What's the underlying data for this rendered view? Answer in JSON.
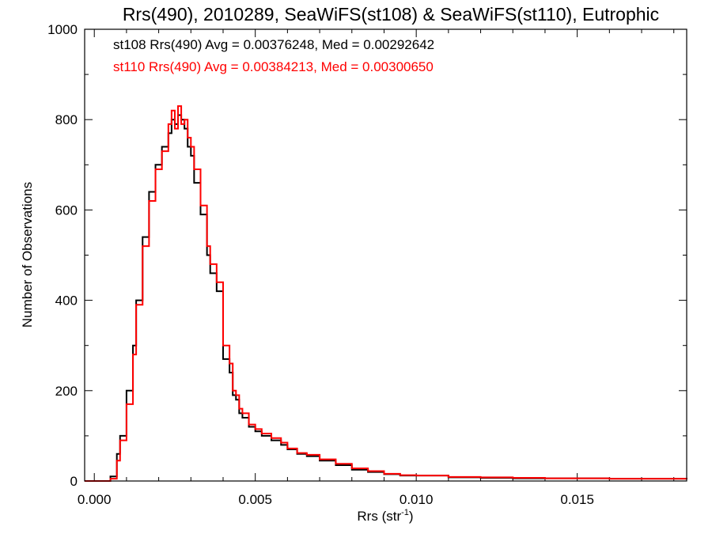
{
  "chart_data": {
    "type": "histogram",
    "title": "Rrs(490), 2010289, SeaWiFS(st108) & SeaWiFS(st110), Eutrophic",
    "xlabel": "Rrs (str",
    "xlabel_sup": "-1",
    "xlabel_suffix": ")",
    "ylabel": "Number of Observations",
    "xlim": [
      -0.0003,
      0.0184
    ],
    "ylim": [
      0,
      1000
    ],
    "xticks": [
      0.0,
      0.005,
      0.01,
      0.015
    ],
    "xtick_labels": [
      "0.000",
      "0.005",
      "0.010",
      "0.015"
    ],
    "yticks": [
      0,
      200,
      400,
      600,
      800,
      1000
    ],
    "ytick_labels": [
      "0",
      "200",
      "400",
      "600",
      "800",
      "1000"
    ],
    "grid": false,
    "annotations": [
      {
        "text": "st108 Rrs(490) Avg = 0.00376248, Med = 0.00292642",
        "color": "#000000"
      },
      {
        "text": "st110 Rrs(490) Avg = 0.00384213, Med = 0.00300650",
        "color": "#ff0000"
      }
    ],
    "series": [
      {
        "color": "#000000",
        "x": [
          -0.0003,
          0.0003,
          0.0005,
          0.0007,
          0.0008,
          0.001,
          0.0012,
          0.0013,
          0.0015,
          0.0017,
          0.0019,
          0.0021,
          0.0023,
          0.0024,
          0.0025,
          0.0026,
          0.0027,
          0.0028,
          0.0029,
          0.003,
          0.0031,
          0.0033,
          0.0035,
          0.0036,
          0.0038,
          0.004,
          0.0042,
          0.0043,
          0.0044,
          0.0045,
          0.0046,
          0.0048,
          0.005,
          0.0052,
          0.0055,
          0.0058,
          0.006,
          0.0063,
          0.0066,
          0.007,
          0.0075,
          0.008,
          0.0085,
          0.009,
          0.0095,
          0.01,
          0.011,
          0.012,
          0.013,
          0.014,
          0.015,
          0.016,
          0.017,
          0.0184
        ],
        "y": [
          0,
          0,
          10,
          60,
          100,
          200,
          300,
          400,
          540,
          640,
          700,
          740,
          770,
          800,
          790,
          810,
          800,
          780,
          740,
          720,
          660,
          590,
          500,
          460,
          420,
          270,
          240,
          190,
          180,
          150,
          140,
          120,
          110,
          100,
          90,
          80,
          70,
          60,
          55,
          45,
          35,
          25,
          20,
          15,
          12,
          12,
          8,
          7,
          6,
          6,
          6,
          5,
          5,
          4
        ]
      },
      {
        "color": "#ff0000",
        "x": [
          -0.0003,
          0.0003,
          0.0005,
          0.0007,
          0.0008,
          0.001,
          0.0012,
          0.0013,
          0.0015,
          0.0017,
          0.0019,
          0.0021,
          0.0023,
          0.0024,
          0.0025,
          0.0026,
          0.0027,
          0.0028,
          0.0029,
          0.003,
          0.0031,
          0.0033,
          0.0035,
          0.0036,
          0.0038,
          0.004,
          0.0042,
          0.0043,
          0.0044,
          0.0045,
          0.0046,
          0.0048,
          0.005,
          0.0052,
          0.0055,
          0.0058,
          0.006,
          0.0063,
          0.0066,
          0.007,
          0.0075,
          0.008,
          0.0085,
          0.009,
          0.0095,
          0.01,
          0.011,
          0.012,
          0.013,
          0.014,
          0.015,
          0.016,
          0.017,
          0.0184
        ],
        "y": [
          0,
          0,
          5,
          45,
          90,
          170,
          280,
          390,
          520,
          620,
          690,
          730,
          790,
          820,
          780,
          830,
          790,
          800,
          760,
          740,
          690,
          610,
          520,
          480,
          440,
          300,
          260,
          200,
          190,
          160,
          150,
          125,
          115,
          105,
          95,
          85,
          72,
          62,
          58,
          48,
          38,
          28,
          22,
          16,
          13,
          12,
          9,
          8,
          7,
          6,
          6,
          5,
          5,
          4
        ]
      }
    ]
  }
}
